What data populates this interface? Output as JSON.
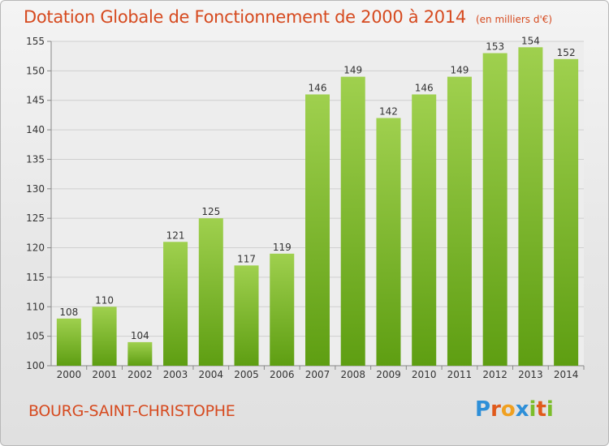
{
  "header": {
    "title": "Dotation Globale de Fonctionnement de 2000 à 2014",
    "unit": "(en milliers d'€)"
  },
  "footer": {
    "commune": "BOURG-SAINT-CHRISTOPHE",
    "logo_text": "Proxiti",
    "logo_letters": [
      {
        "ch": "P",
        "color": "#2e8fd8"
      },
      {
        "ch": "r",
        "color": "#e05a1c"
      },
      {
        "ch": "o",
        "color": "#f0a020"
      },
      {
        "ch": "x",
        "color": "#2e8fd8"
      },
      {
        "ch": "i",
        "color": "#7bbd2a"
      },
      {
        "ch": "t",
        "color": "#e05a1c"
      },
      {
        "ch": "i",
        "color": "#7bbd2a"
      }
    ]
  },
  "colors": {
    "title": "#d64a1f",
    "bar_top": "#9fd04e",
    "bar_bottom": "#5e9e12",
    "grid": "#cfcfcf",
    "axis": "#888888"
  },
  "chart_data": {
    "type": "bar",
    "categories": [
      "2000",
      "2001",
      "2002",
      "2003",
      "2004",
      "2005",
      "2006",
      "2007",
      "2008",
      "2009",
      "2010",
      "2011",
      "2012",
      "2013",
      "2014"
    ],
    "values": [
      108,
      110,
      104,
      121,
      125,
      117,
      119,
      146,
      149,
      142,
      146,
      149,
      153,
      154,
      152
    ],
    "title": "Dotation Globale de Fonctionnement de 2000 à 2014",
    "ylabel": "",
    "xlabel": "",
    "ylim": [
      100,
      155
    ],
    "yticks": [
      100,
      105,
      110,
      115,
      120,
      125,
      130,
      135,
      140,
      145,
      150,
      155
    ],
    "grid": true,
    "data_labels": true
  }
}
